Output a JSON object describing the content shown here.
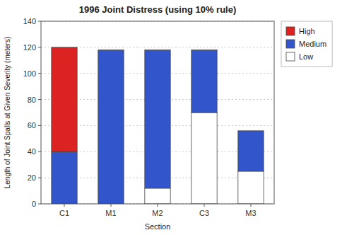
{
  "chart_data": {
    "type": "bar",
    "stacked": true,
    "title": "1996 Joint Distress (using 10% rule)",
    "x_label": "Section",
    "y_label": "Length of Joint Spalls at Given Severity (meters)",
    "categories": [
      "C1",
      "M1",
      "M2",
      "C3",
      "M3"
    ],
    "series": [
      {
        "name": "Low",
        "color": "#ffffff",
        "values": [
          0,
          0,
          12,
          70,
          25
        ]
      },
      {
        "name": "Medium",
        "color": "#3355cc",
        "values": [
          40,
          118,
          106,
          48,
          31
        ]
      },
      {
        "name": "High",
        "color": "#dd2222",
        "values": [
          80,
          0,
          0,
          0,
          0
        ]
      }
    ],
    "ylim": [
      0,
      140
    ],
    "yticks": [
      0,
      20,
      40,
      60,
      80,
      100,
      120,
      140
    ],
    "grid": true,
    "legend": "right"
  }
}
